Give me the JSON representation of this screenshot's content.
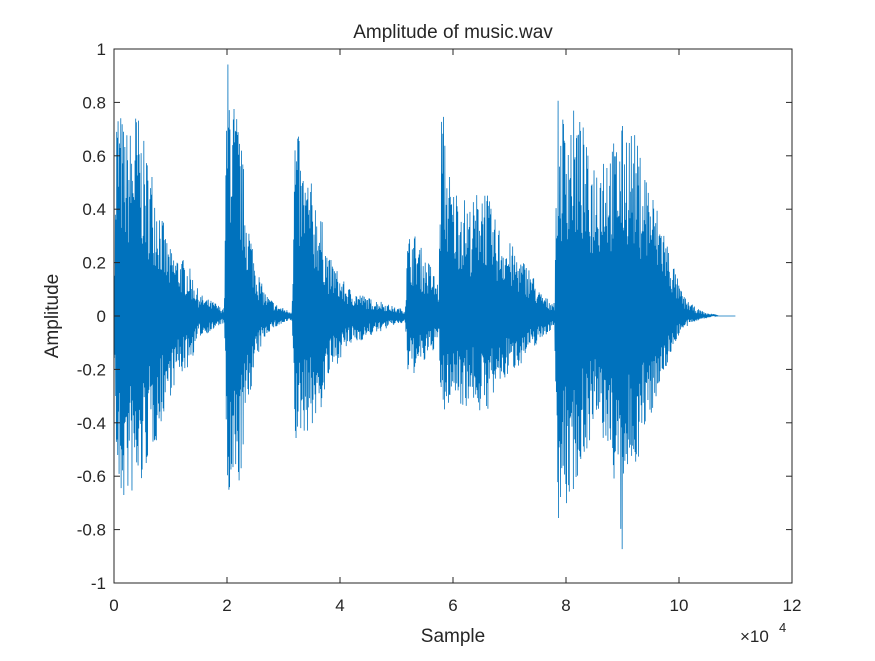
{
  "chart_data": {
    "type": "line",
    "title": "Amplitude of music.wav",
    "xlabel": "Sample",
    "ylabel": "Amplitude",
    "xlim": [
      0,
      120000
    ],
    "ylim": [
      -1,
      1
    ],
    "x_exponent_label": "×10",
    "x_exponent_power": "4",
    "xticks": [
      0,
      20000,
      40000,
      60000,
      80000,
      100000,
      120000
    ],
    "xtick_labels": [
      "0",
      "2",
      "4",
      "6",
      "8",
      "10",
      "12"
    ],
    "yticks": [
      -1,
      -0.8,
      -0.6,
      -0.4,
      -0.2,
      0,
      0.2,
      0.4,
      0.6,
      0.8,
      1
    ],
    "ytick_labels": [
      "-1",
      "-0.8",
      "-0.6",
      "-0.4",
      "-0.2",
      "0",
      "0.2",
      "0.4",
      "0.6",
      "0.8",
      "1"
    ],
    "grid": false,
    "line_color": "#0072BD",
    "series": [
      {
        "envelope": {
          "x": [
            0,
            500,
            1000,
            2000,
            3000,
            4000,
            5000,
            6000,
            7000,
            8000,
            9000,
            10000,
            11000,
            12000,
            13000,
            14000,
            15000,
            16000,
            17000,
            18000,
            19000,
            19500,
            20000,
            20500,
            21000,
            22000,
            23000,
            24000,
            25000,
            26000,
            27000,
            28000,
            29000,
            30000,
            31000,
            31500,
            32000,
            32500,
            33000,
            34000,
            35000,
            36000,
            37000,
            38000,
            39000,
            40000,
            41000,
            42000,
            43000,
            44000,
            45000,
            46000,
            47000,
            48000,
            49000,
            50000,
            51000,
            51500,
            52000,
            53000,
            54000,
            55000,
            56000,
            57000,
            57500,
            58000,
            59000,
            60000,
            61000,
            62000,
            63000,
            64000,
            65000,
            66000,
            67000,
            68000,
            69000,
            70000,
            71000,
            72000,
            73000,
            74000,
            75000,
            76000,
            77000,
            78000,
            78500,
            79000,
            80000,
            81000,
            82000,
            83000,
            84000,
            85000,
            86000,
            87000,
            88000,
            89000,
            90000,
            91000,
            92000,
            93000,
            94000,
            95000,
            96000,
            97000,
            98000,
            99000,
            100000,
            101000,
            102000,
            103000,
            104000,
            105000,
            106000,
            107000,
            108000,
            109000,
            110000
          ],
          "upper": [
            0.1,
            0.85,
            0.8,
            0.7,
            0.72,
            0.8,
            0.68,
            0.6,
            0.55,
            0.45,
            0.32,
            0.25,
            0.24,
            0.22,
            0.2,
            0.15,
            0.09,
            0.07,
            0.06,
            0.05,
            0.03,
            0.03,
            0.98,
            0.95,
            0.85,
            0.75,
            0.55,
            0.35,
            0.22,
            0.13,
            0.08,
            0.06,
            0.04,
            0.03,
            0.02,
            0.02,
            0.74,
            0.72,
            0.6,
            0.55,
            0.5,
            0.44,
            0.34,
            0.22,
            0.2,
            0.15,
            0.12,
            0.1,
            0.09,
            0.08,
            0.07,
            0.06,
            0.06,
            0.05,
            0.04,
            0.03,
            0.03,
            0.02,
            0.3,
            0.32,
            0.28,
            0.22,
            0.2,
            0.14,
            0.12,
            0.85,
            0.6,
            0.48,
            0.5,
            0.45,
            0.42,
            0.45,
            0.55,
            0.48,
            0.38,
            0.35,
            0.32,
            0.28,
            0.25,
            0.22,
            0.2,
            0.17,
            0.1,
            0.08,
            0.06,
            0.06,
            0.82,
            0.75,
            0.8,
            0.78,
            0.78,
            0.72,
            0.6,
            0.62,
            0.65,
            0.7,
            0.65,
            0.68,
            0.72,
            0.75,
            0.7,
            0.62,
            0.58,
            0.5,
            0.42,
            0.38,
            0.28,
            0.2,
            0.12,
            0.07,
            0.05,
            0.03,
            0.02,
            0.01,
            0.01,
            0.0,
            0.0,
            0.0,
            0.0
          ],
          "lower": [
            -0.1,
            -0.65,
            -0.75,
            -0.7,
            -0.68,
            -0.72,
            -0.65,
            -0.55,
            -0.5,
            -0.45,
            -0.35,
            -0.3,
            -0.25,
            -0.22,
            -0.2,
            -0.15,
            -0.08,
            -0.07,
            -0.06,
            -0.05,
            -0.03,
            -0.03,
            -0.72,
            -0.78,
            -0.75,
            -0.68,
            -0.5,
            -0.3,
            -0.2,
            -0.12,
            -0.07,
            -0.05,
            -0.04,
            -0.03,
            -0.02,
            -0.02,
            -0.5,
            -0.5,
            -0.45,
            -0.44,
            -0.42,
            -0.4,
            -0.33,
            -0.24,
            -0.2,
            -0.16,
            -0.13,
            -0.11,
            -0.1,
            -0.09,
            -0.08,
            -0.07,
            -0.06,
            -0.05,
            -0.04,
            -0.03,
            -0.03,
            -0.02,
            -0.22,
            -0.22,
            -0.2,
            -0.18,
            -0.15,
            -0.11,
            -0.1,
            -0.42,
            -0.35,
            -0.3,
            -0.32,
            -0.35,
            -0.32,
            -0.33,
            -0.38,
            -0.36,
            -0.32,
            -0.28,
            -0.25,
            -0.22,
            -0.2,
            -0.18,
            -0.15,
            -0.13,
            -0.1,
            -0.08,
            -0.06,
            -0.05,
            -0.75,
            -0.78,
            -0.75,
            -0.68,
            -0.62,
            -0.55,
            -0.48,
            -0.44,
            -0.45,
            -0.5,
            -0.55,
            -0.7,
            -0.95,
            -0.62,
            -0.58,
            -0.52,
            -0.45,
            -0.38,
            -0.3,
            -0.25,
            -0.18,
            -0.12,
            -0.07,
            -0.05,
            -0.03,
            -0.02,
            -0.01,
            -0.01,
            -0.0,
            -0.0,
            -0.0,
            -0.0,
            -0.0
          ]
        }
      }
    ]
  }
}
